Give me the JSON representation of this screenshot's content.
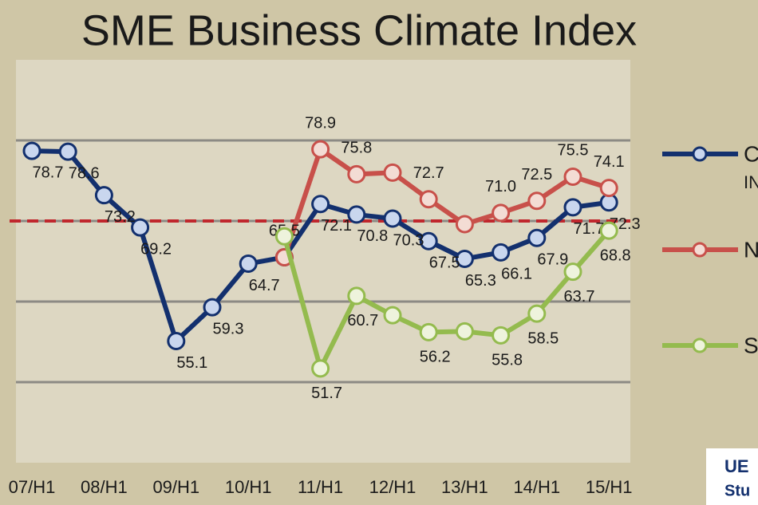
{
  "chart_data": {
    "type": "line",
    "title": "SME Business Climate Index",
    "categories": [
      "07/H1",
      null,
      "08/H1",
      null,
      "09/H1",
      null,
      "10/H1",
      null,
      "11/H1",
      null,
      "12/H1",
      null,
      "13/H1",
      null,
      "14/H1",
      null,
      "15/H1"
    ],
    "ylim": [
      40,
      90
    ],
    "yticks": [
      50,
      60,
      70,
      80
    ],
    "grid": true,
    "reference_line": 70,
    "series": [
      {
        "name": [
          "C",
          "IN"
        ],
        "color": "#13306e",
        "marker_fill": "#c9d6ee",
        "values": [
          78.7,
          78.6,
          73.2,
          69.2,
          55.1,
          59.3,
          64.7,
          65.5,
          72.1,
          70.8,
          70.3,
          67.5,
          65.3,
          66.1,
          67.9,
          71.7,
          72.3
        ],
        "value_labels": [
          "78.7",
          "78.6",
          "73.2",
          "69.2",
          "55.1",
          "59.3",
          "64.7",
          null,
          "72.1",
          "70.8",
          "70.3",
          "67.5",
          "65.3",
          "66.1",
          "67.9",
          "71.7",
          "72.3"
        ]
      },
      {
        "name": [
          "N"
        ],
        "color": "#c8504a",
        "marker_fill": "#f3dcd4",
        "values": [
          null,
          null,
          null,
          null,
          null,
          null,
          null,
          65.5,
          78.9,
          75.8,
          76.0,
          72.7,
          69.6,
          71.0,
          72.5,
          75.5,
          74.1
        ],
        "value_labels": [
          null,
          null,
          null,
          null,
          null,
          null,
          null,
          "65.5",
          "78.9",
          "75.8",
          null,
          "72.7",
          null,
          "71.0",
          "72.5",
          "75.5",
          "74.1"
        ]
      },
      {
        "name": [
          "S"
        ],
        "color": "#94bb4e",
        "marker_fill": "#eef3dc",
        "values": [
          null,
          null,
          null,
          null,
          null,
          null,
          null,
          68.1,
          51.7,
          60.7,
          58.3,
          56.2,
          56.3,
          55.8,
          58.5,
          63.7,
          68.8
        ],
        "value_labels": [
          null,
          null,
          null,
          null,
          null,
          null,
          null,
          null,
          "51.7",
          "60.7",
          null,
          "56.2",
          null,
          "55.8",
          "58.5",
          "63.7",
          "68.8"
        ]
      }
    ],
    "logo": [
      "UE",
      "Stu"
    ]
  }
}
